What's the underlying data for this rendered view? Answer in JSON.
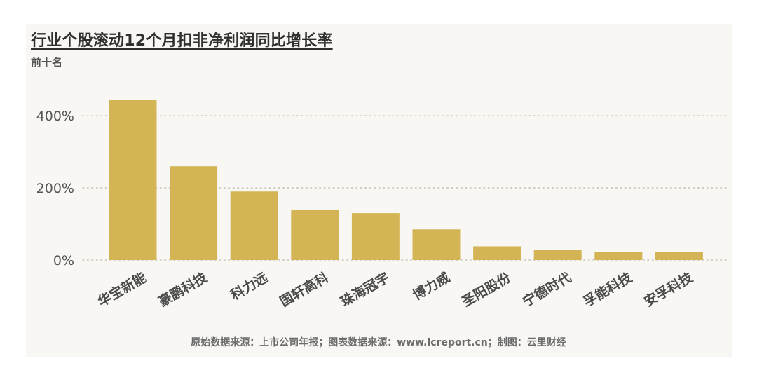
{
  "title": "行业个股滚动12个月扣非净利润同比增长率",
  "subtitle": "前十名",
  "source": "原始数据来源：上市公司年报；图表数据来源：www.lcreport.cn；制图：云里财经",
  "colors": {
    "bar": "#d4b556",
    "grid": "#c8c4b8",
    "axis_text": "#555555",
    "panel": "#f8f7f3"
  },
  "chart_data": {
    "type": "bar",
    "title": "行业个股滚动12个月扣非净利润同比增长率",
    "subtitle": "前十名",
    "categories": [
      "华宝新能",
      "豪鹏科技",
      "科力远",
      "国轩高科",
      "珠海冠宇",
      "博力威",
      "圣阳股份",
      "宁德时代",
      "孚能科技",
      "安孚科技"
    ],
    "values": [
      445,
      260,
      190,
      140,
      130,
      85,
      38,
      28,
      22,
      22
    ],
    "y_ticks": [
      0,
      200,
      400
    ],
    "y_tick_labels": [
      "0%",
      "200%",
      "400%"
    ],
    "ylim": [
      0,
      480
    ],
    "grid": true,
    "xlabel": "",
    "ylabel": ""
  }
}
